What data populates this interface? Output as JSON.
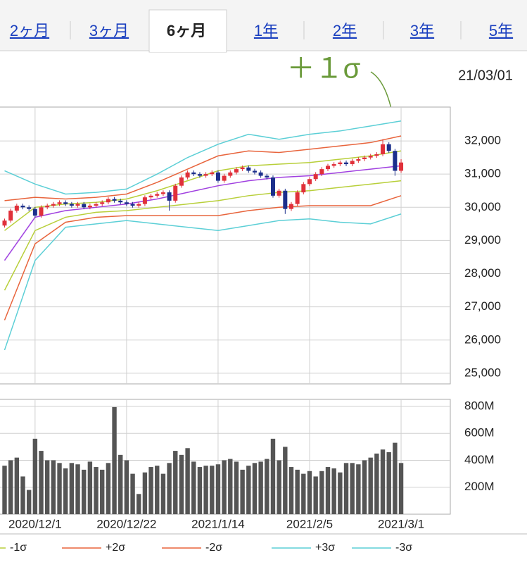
{
  "tabs": [
    "2ヶ月",
    "3ヶ月",
    "6ヶ月",
    "1年",
    "2年",
    "3年",
    "5年"
  ],
  "active_tab": 2,
  "date": "21/03/01",
  "annotation": "＋１σ",
  "chart_data": [
    {
      "type": "candlestick",
      "up_color": "#e0303a",
      "down_color": "#1c2f8c",
      "open": [
        29450,
        29600,
        29900,
        30050,
        30000,
        29950,
        29750,
        30000,
        30050,
        30100,
        30150,
        30100,
        30050,
        30100,
        30000,
        30050,
        30100,
        30150,
        30250,
        30200,
        30150,
        30100,
        30050,
        30100,
        30300,
        30350,
        30400,
        30450,
        30200,
        30650,
        30900,
        31050,
        31000,
        30950,
        31000,
        31050,
        30800,
        30950,
        31050,
        31150,
        31200,
        31100,
        31050,
        30950,
        30900,
        30350,
        30500,
        29950,
        30100,
        30450,
        30700,
        30850,
        31000,
        31150,
        31250,
        31300,
        31350,
        31300,
        31400,
        31450,
        31500,
        31550,
        31600,
        31900,
        31700,
        31100
      ],
      "high": [
        29660,
        29960,
        30110,
        30110,
        30060,
        30010,
        30060,
        30110,
        30160,
        30210,
        30210,
        30160,
        30160,
        30160,
        30110,
        30160,
        30210,
        30310,
        30310,
        30260,
        30210,
        30160,
        30160,
        30360,
        30410,
        30460,
        30510,
        30510,
        30710,
        30960,
        31110,
        31110,
        31060,
        31060,
        31110,
        31110,
        31010,
        31110,
        31210,
        31260,
        31260,
        31160,
        31110,
        31010,
        30960,
        30560,
        30560,
        30160,
        30510,
        30760,
        30910,
        31060,
        31210,
        31310,
        31360,
        31410,
        31410,
        31460,
        31510,
        31560,
        31610,
        31660,
        32050,
        31960,
        31760,
        31450
      ],
      "low": [
        29390,
        29540,
        29840,
        29940,
        29890,
        29690,
        29690,
        29940,
        29990,
        30040,
        30040,
        29990,
        29990,
        29940,
        29940,
        29990,
        30040,
        30090,
        30140,
        30090,
        30040,
        29990,
        29990,
        30040,
        30240,
        30290,
        30340,
        29900,
        30140,
        30590,
        30840,
        30940,
        30890,
        30890,
        30940,
        30740,
        30740,
        30890,
        30990,
        31090,
        31040,
        30990,
        30890,
        30840,
        30290,
        30290,
        29800,
        29890,
        30040,
        30390,
        30640,
        30790,
        30940,
        31090,
        31190,
        31240,
        31240,
        31240,
        31340,
        31390,
        31440,
        31490,
        31540,
        31640,
        30950,
        31040
      ],
      "close": [
        29600,
        29900,
        30050,
        30000,
        29950,
        29750,
        30000,
        30050,
        30100,
        30150,
        30100,
        30050,
        30100,
        30000,
        30050,
        30100,
        30150,
        30250,
        30200,
        30150,
        30100,
        30050,
        30100,
        30300,
        30350,
        30400,
        30450,
        30200,
        30650,
        30900,
        31050,
        31000,
        30950,
        31000,
        31050,
        30800,
        30950,
        31050,
        31150,
        31200,
        31100,
        31050,
        30950,
        30900,
        30350,
        30500,
        29950,
        30100,
        30450,
        30700,
        30850,
        31000,
        31150,
        31250,
        31300,
        31350,
        31300,
        31400,
        31450,
        31500,
        31550,
        31600,
        31900,
        31700,
        31100,
        31350
      ],
      "bands": [
        {
          "color": "#a040e0",
          "x": [
            0,
            5,
            10,
            15,
            20,
            25,
            30,
            35,
            40,
            45,
            50,
            55,
            60,
            65
          ],
          "values": [
            28400,
            29700,
            29900,
            30000,
            30100,
            30250,
            30450,
            30650,
            30800,
            30900,
            30950,
            31050,
            31150,
            31250
          ]
        },
        {
          "color": "#b8cf3a",
          "x": [
            0,
            5,
            10,
            15,
            20,
            25,
            30,
            35,
            40,
            45,
            50,
            55,
            60,
            65
          ],
          "values": [
            29300,
            30000,
            30100,
            30150,
            30250,
            30500,
            30800,
            31100,
            31250,
            31300,
            31350,
            31450,
            31550,
            31700
          ]
        },
        {
          "name": "-1σ",
          "color": "#b8cf3a",
          "x": [
            0,
            5,
            10,
            15,
            20,
            25,
            30,
            35,
            40,
            45,
            50,
            55,
            60,
            65
          ],
          "values": [
            27500,
            29300,
            29700,
            29850,
            29900,
            30000,
            30100,
            30200,
            30350,
            30450,
            30500,
            30600,
            30700,
            30800
          ]
        },
        {
          "name": "+2σ",
          "color": "#e8643c",
          "x": [
            0,
            5,
            10,
            15,
            20,
            25,
            30,
            35,
            40,
            45,
            50,
            55,
            60,
            65
          ],
          "values": [
            30200,
            30300,
            30250,
            30300,
            30400,
            30750,
            31150,
            31550,
            31700,
            31650,
            31750,
            31850,
            31950,
            32150
          ]
        },
        {
          "name": "-2σ",
          "color": "#e8643c",
          "x": [
            0,
            5,
            10,
            15,
            20,
            25,
            30,
            35,
            40,
            45,
            50,
            55,
            60,
            65
          ],
          "values": [
            26600,
            28900,
            29550,
            29700,
            29750,
            29750,
            29750,
            29750,
            29900,
            30000,
            30050,
            30050,
            30050,
            30350
          ]
        },
        {
          "name": "+3σ",
          "color": "#5ccfd6",
          "x": [
            0,
            5,
            10,
            15,
            20,
            25,
            30,
            35,
            40,
            45,
            50,
            55,
            60,
            65
          ],
          "values": [
            31100,
            30700,
            30400,
            30450,
            30550,
            31000,
            31500,
            31900,
            32200,
            32050,
            32200,
            32300,
            32450,
            32600
          ]
        },
        {
          "name": "-3σ",
          "color": "#5ccfd6",
          "x": [
            0,
            5,
            10,
            15,
            20,
            25,
            30,
            35,
            40,
            45,
            50,
            55,
            60,
            65
          ],
          "values": [
            25700,
            28400,
            29400,
            29500,
            29600,
            29500,
            29400,
            29300,
            29450,
            29600,
            29650,
            29550,
            29500,
            29800
          ]
        }
      ],
      "ylim": [
        24680,
        33020
      ],
      "yticks": [
        {
          "value": 32000,
          "label": "32,000"
        },
        {
          "value": 31000,
          "label": "31,000"
        },
        {
          "value": 30000,
          "label": "30,000"
        },
        {
          "value": 29000,
          "label": "29,000"
        },
        {
          "value": 28000,
          "label": "28,000"
        },
        {
          "value": 27000,
          "label": "27,000"
        },
        {
          "value": 26000,
          "label": "26,000"
        },
        {
          "value": 25000,
          "label": "25,000"
        }
      ],
      "grid": true
    },
    {
      "type": "bar",
      "color": "#555555",
      "categories": [
        null,
        null,
        null,
        null,
        null,
        "2020/12/1",
        null,
        null,
        null,
        null,
        null,
        null,
        null,
        null,
        null,
        null,
        null,
        null,
        null,
        null,
        "2020/12/22",
        null,
        null,
        null,
        null,
        null,
        null,
        null,
        null,
        null,
        null,
        null,
        null,
        null,
        null,
        "2021/1/14",
        null,
        null,
        null,
        null,
        null,
        null,
        null,
        null,
        null,
        null,
        null,
        null,
        null,
        null,
        "2021/2/5",
        null,
        null,
        null,
        null,
        null,
        null,
        null,
        null,
        null,
        null,
        null,
        null,
        null,
        null,
        "2021/3/1"
      ],
      "values": [
        360,
        400,
        420,
        280,
        180,
        560,
        470,
        400,
        400,
        380,
        340,
        380,
        370,
        330,
        390,
        350,
        330,
        380,
        795,
        440,
        400,
        300,
        150,
        310,
        350,
        360,
        300,
        380,
        470,
        440,
        490,
        390,
        350,
        360,
        360,
        370,
        400,
        410,
        390,
        330,
        360,
        380,
        390,
        410,
        560,
        400,
        500,
        350,
        330,
        300,
        320,
        280,
        320,
        350,
        340,
        310,
        380,
        380,
        370,
        400,
        420,
        450,
        480,
        460,
        530,
        380
      ],
      "ylim": [
        0,
        852
      ],
      "yticks": [
        {
          "value": 800,
          "label": "800M"
        },
        {
          "value": 600,
          "label": "600M"
        },
        {
          "value": 400,
          "label": "400M"
        },
        {
          "value": 200,
          "label": "200M"
        }
      ],
      "grid": true
    }
  ]
}
